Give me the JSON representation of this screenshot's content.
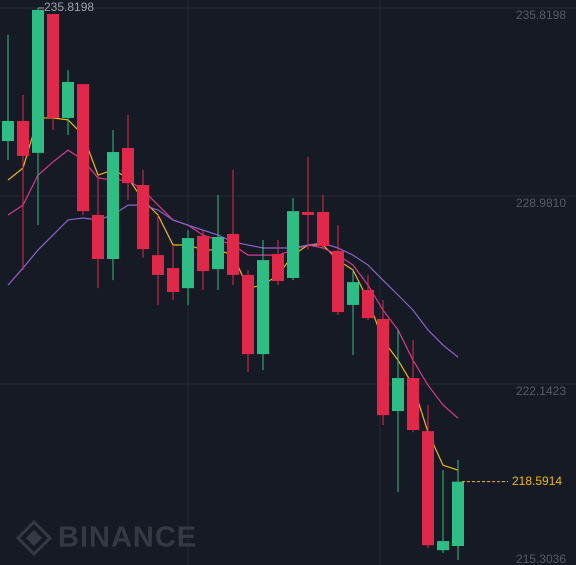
{
  "chart_data": {
    "type": "candlestick",
    "ylim": [
      215.56,
      236.11
    ],
    "yticks": [
      235.8198,
      {
        "value": 228.981,
        "label": "228.9810"
      },
      222.1423,
      215.3036
    ],
    "grid": true,
    "up_color": "#2ebd85",
    "down_color": "#e0294a",
    "open": [
      230.98,
      231.71,
      230.55,
      235.6,
      231.82,
      233.05,
      228.29,
      226.69,
      230.73,
      229.38,
      226.83,
      226.36,
      225.63,
      227.53,
      226.32,
      227.6,
      226.11,
      223.23,
      226.87,
      226.0,
      228.4,
      228.4,
      226.98,
      225.02,
      225.56,
      224.51,
      221.16,
      222.36,
      220.43,
      216.1,
      216.25
    ],
    "high": [
      234.84,
      232.66,
      235.8198,
      235.6,
      233.56,
      233.05,
      229.74,
      231.38,
      231.93,
      229.93,
      228.29,
      227.2,
      227.74,
      227.74,
      229.02,
      229.93,
      226.29,
      227.38,
      227.38,
      228.91,
      230.4,
      229.02,
      227.92,
      226.29,
      226.11,
      225.2,
      224.11,
      223.74,
      221.38,
      219.01,
      219.38
    ],
    "low": [
      230.29,
      226.29,
      227.92,
      231.38,
      231.2,
      228.29,
      225.63,
      225.92,
      228.83,
      226.73,
      225.02,
      225.2,
      225.02,
      225.56,
      225.56,
      225.74,
      222.58,
      222.65,
      225.74,
      225.92,
      227.02,
      227.09,
      224.65,
      223.2,
      224.47,
      220.65,
      218.21,
      220.39,
      216.18,
      215.99,
      215.74
    ],
    "close": [
      231.71,
      230.44,
      235.75,
      231.82,
      233.13,
      228.43,
      226.69,
      230.58,
      229.45,
      227.05,
      226.11,
      225.49,
      227.45,
      226.25,
      227.49,
      226.11,
      223.23,
      226.65,
      225.89,
      228.43,
      228.29,
      227.16,
      224.76,
      225.85,
      224.54,
      221.01,
      222.36,
      220.47,
      216.28,
      216.43,
      218.5914
    ],
    "series": [
      {
        "color": "#f0b90b",
        "values": [
          229.56,
          230.0,
          231.82,
          231.82,
          231.75,
          231.2,
          229.74,
          229.93,
          229.64,
          228.83,
          228.29,
          227.2,
          227.2,
          227.02,
          227.02,
          226.83,
          225.63,
          225.74,
          226.11,
          226.83,
          227.2,
          227.2,
          226.65,
          226.29,
          225.2,
          223.74,
          223.01,
          222.1,
          220.39,
          219.19,
          219.01
        ]
      },
      {
        "color": "#d6398f",
        "values": [
          228.29,
          228.65,
          229.74,
          230.22,
          230.65,
          230.29,
          229.64,
          229.56,
          229.56,
          229.2,
          228.65,
          228.11,
          227.92,
          227.56,
          227.38,
          227.2,
          226.83,
          226.83,
          226.83,
          227.02,
          227.2,
          227.09,
          226.83,
          226.47,
          225.74,
          224.83,
          224.11,
          223.01,
          222.1,
          221.38,
          220.9
        ]
      },
      {
        "color": "#8a63c9",
        "values": [
          225.74,
          226.36,
          227.02,
          227.56,
          228.11,
          228.18,
          228.11,
          228.29,
          228.65,
          228.65,
          228.47,
          228.11,
          227.92,
          227.74,
          227.56,
          227.31,
          227.2,
          227.09,
          227.09,
          227.09,
          227.2,
          227.27,
          227.09,
          226.83,
          226.47,
          225.92,
          225.38,
          224.83,
          224.11,
          223.56,
          223.12
        ]
      }
    ],
    "last_price_color": "#f0b90b",
    "watermark": "BINANCE"
  }
}
